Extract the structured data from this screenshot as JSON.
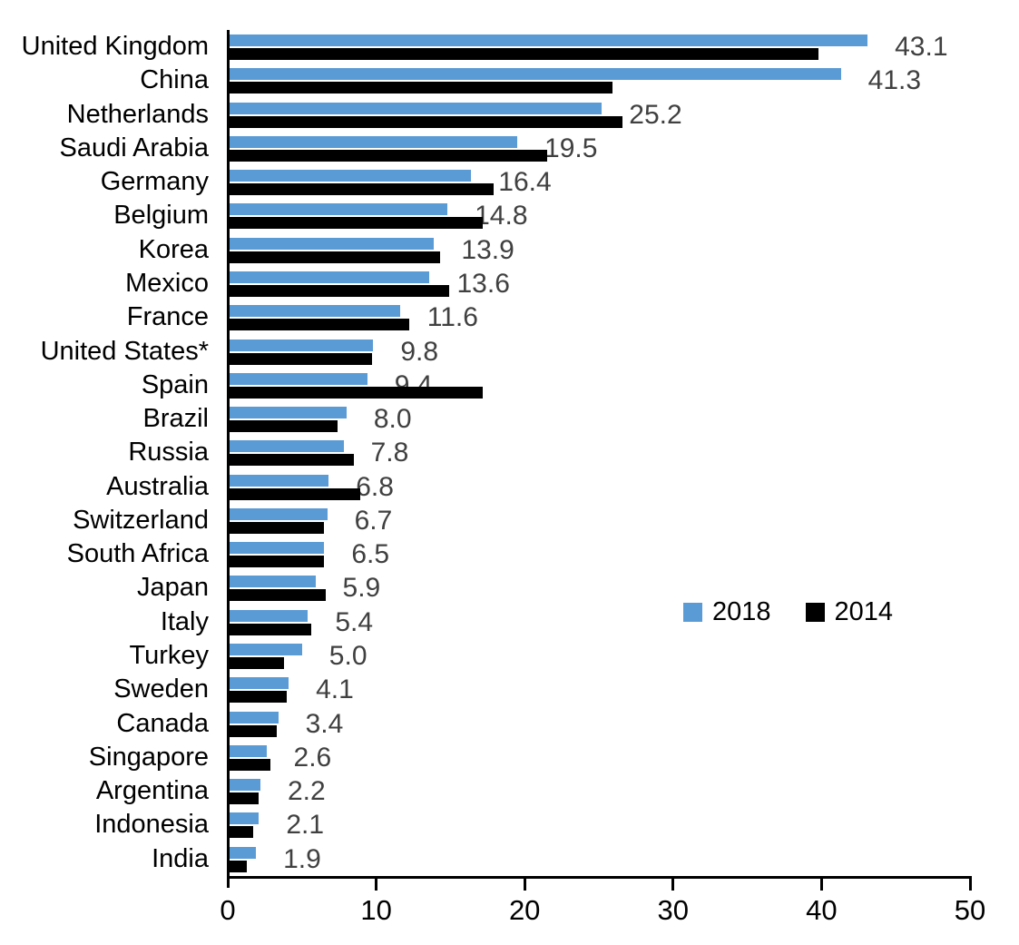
{
  "chart_data": {
    "type": "bar",
    "orientation": "horizontal",
    "title": "",
    "xlabel": "",
    "ylabel": "",
    "xlim": [
      0,
      50
    ],
    "x_ticks": [
      0,
      10,
      20,
      30,
      40,
      50
    ],
    "grid": false,
    "legend_position": "middle-right",
    "categories": [
      "United Kingdom",
      "China",
      "Netherlands",
      "Saudi Arabia",
      "Germany",
      "Belgium",
      "Korea",
      "Mexico",
      "France",
      "United States*",
      "Spain",
      "Brazil",
      "Russia",
      "Australia",
      "Switzerland",
      "South Africa",
      "Japan",
      "Italy",
      "Turkey",
      "Sweden",
      "Canada",
      "Singapore",
      "Argentina",
      "Indonesia",
      "India"
    ],
    "series": [
      {
        "name": "2018",
        "color": "#5B9BD5",
        "values": [
          43.1,
          41.3,
          25.2,
          19.5,
          16.4,
          14.8,
          13.9,
          13.6,
          11.6,
          9.8,
          9.4,
          8.0,
          7.8,
          6.8,
          6.7,
          6.5,
          5.9,
          5.4,
          5.0,
          4.1,
          3.4,
          2.6,
          2.2,
          2.1,
          1.9
        ],
        "data_labels": [
          "43.1",
          "41.3",
          "25.2",
          "19.5",
          "16.4",
          "14.8",
          "13.9",
          "13.6",
          "11.6",
          "9.8",
          "9.4",
          "8.0",
          "7.8",
          "6.8",
          "6.7",
          "6.5",
          "5.9",
          "5.4",
          "5.0",
          "4.1",
          "3.4",
          "2.6",
          "2.2",
          "2.1",
          "1.9"
        ]
      },
      {
        "name": "2014",
        "color": "#000000",
        "values": [
          39.8,
          25.9,
          26.6,
          21.5,
          17.9,
          17.2,
          14.3,
          14.9,
          12.2,
          9.7,
          17.2,
          7.4,
          8.5,
          8.9,
          6.5,
          6.5,
          6.6,
          5.6,
          3.8,
          4.0,
          3.3,
          2.9,
          2.1,
          1.7,
          1.3
        ],
        "data_labels": []
      }
    ],
    "value_label_color": "#404040",
    "axis_color": "#000000",
    "text_color": "#000000"
  }
}
